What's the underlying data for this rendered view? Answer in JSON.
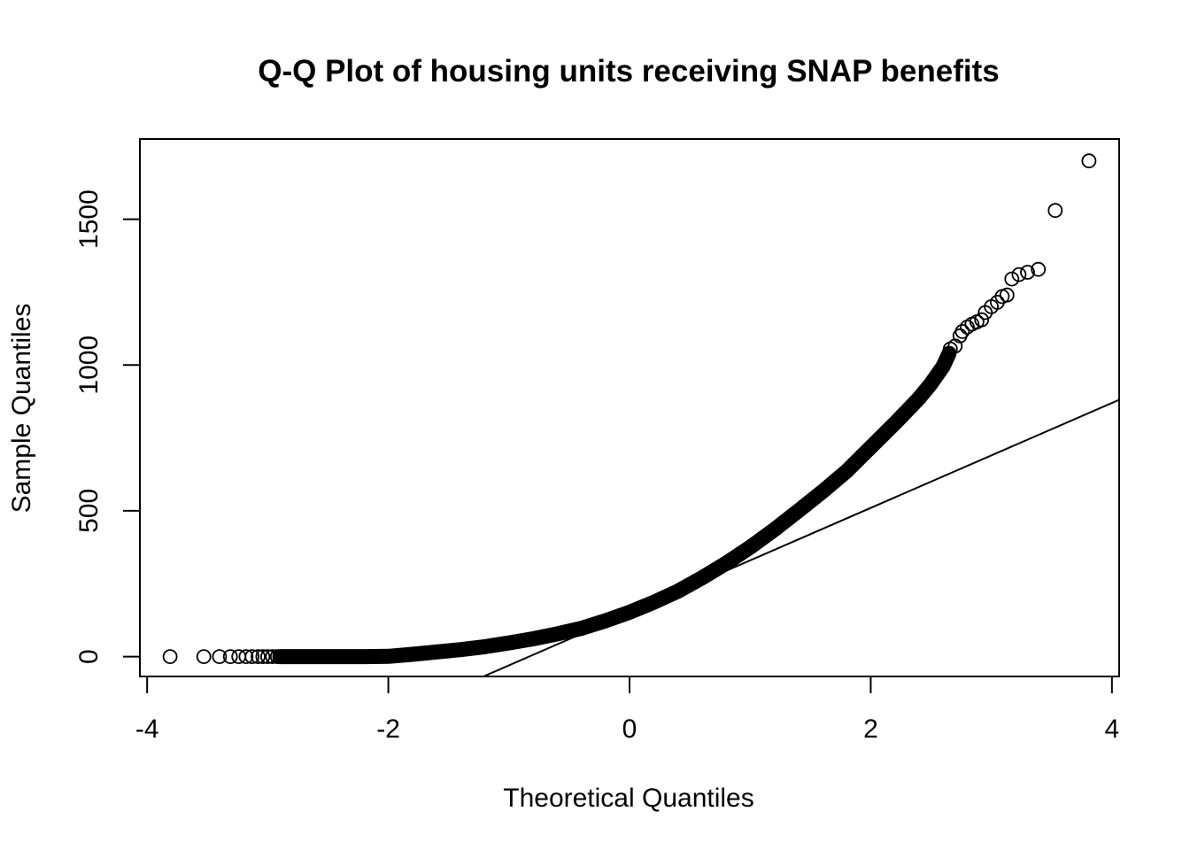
{
  "chart_data": {
    "type": "scatter",
    "title": "Q-Q Plot of housing units receiving SNAP benefits",
    "xlabel": "Theoretical Quantiles",
    "ylabel": "Sample Quantiles",
    "xlim": [
      -4.06,
      4.06
    ],
    "ylim": [
      -68,
      1775
    ],
    "x_ticks": [
      -4,
      -2,
      0,
      2,
      4
    ],
    "x_tick_labels": [
      "-4",
      "-2",
      "0",
      "2",
      "4"
    ],
    "y_ticks": [
      0,
      500,
      1000,
      1500
    ],
    "y_tick_labels": [
      "0",
      "500",
      "1000",
      "1500"
    ],
    "grid": false,
    "legend": "none",
    "marker": "open-circle",
    "reference_line": {
      "slope": 180,
      "intercept": 150
    },
    "curve_points": [
      [
        -2.9,
        0
      ],
      [
        -2.5,
        0
      ],
      [
        -2.2,
        0
      ],
      [
        -2.0,
        1
      ],
      [
        -1.8,
        8
      ],
      [
        -1.6,
        16
      ],
      [
        -1.4,
        24
      ],
      [
        -1.2,
        34
      ],
      [
        -1.0,
        47
      ],
      [
        -0.8,
        61
      ],
      [
        -0.6,
        78
      ],
      [
        -0.4,
        97
      ],
      [
        -0.2,
        123
      ],
      [
        0.0,
        152
      ],
      [
        0.2,
        186
      ],
      [
        0.4,
        224
      ],
      [
        0.6,
        270
      ],
      [
        0.8,
        320
      ],
      [
        1.0,
        375
      ],
      [
        1.2,
        435
      ],
      [
        1.4,
        500
      ],
      [
        1.6,
        566
      ],
      [
        1.8,
        636
      ],
      [
        2.0,
        718
      ],
      [
        2.2,
        800
      ],
      [
        2.4,
        886
      ],
      [
        2.5,
        936
      ],
      [
        2.6,
        995
      ],
      [
        2.65,
        1040
      ]
    ],
    "series": [
      {
        "points": [
          [
            -3.81,
            0
          ],
          [
            -3.53,
            0
          ],
          [
            -3.4,
            0
          ],
          [
            -3.31,
            0
          ],
          [
            -3.24,
            0
          ],
          [
            -3.18,
            0
          ],
          [
            -3.13,
            0
          ],
          [
            -3.08,
            0
          ],
          [
            -3.04,
            0
          ],
          [
            -3.0,
            0
          ],
          [
            -2.96,
            0
          ],
          [
            -2.92,
            0
          ],
          [
            2.66,
            1055
          ],
          [
            2.7,
            1065
          ],
          [
            2.74,
            1100
          ],
          [
            2.76,
            1115
          ],
          [
            2.8,
            1130
          ],
          [
            2.84,
            1140
          ],
          [
            2.88,
            1148
          ],
          [
            2.92,
            1155
          ],
          [
            2.95,
            1180
          ],
          [
            3.0,
            1200
          ],
          [
            3.05,
            1215
          ],
          [
            3.09,
            1235
          ],
          [
            3.13,
            1240
          ],
          [
            3.17,
            1295
          ],
          [
            3.23,
            1310
          ],
          [
            3.3,
            1318
          ],
          [
            3.39,
            1328
          ],
          [
            3.53,
            1530
          ],
          [
            3.81,
            1700
          ]
        ]
      }
    ]
  }
}
